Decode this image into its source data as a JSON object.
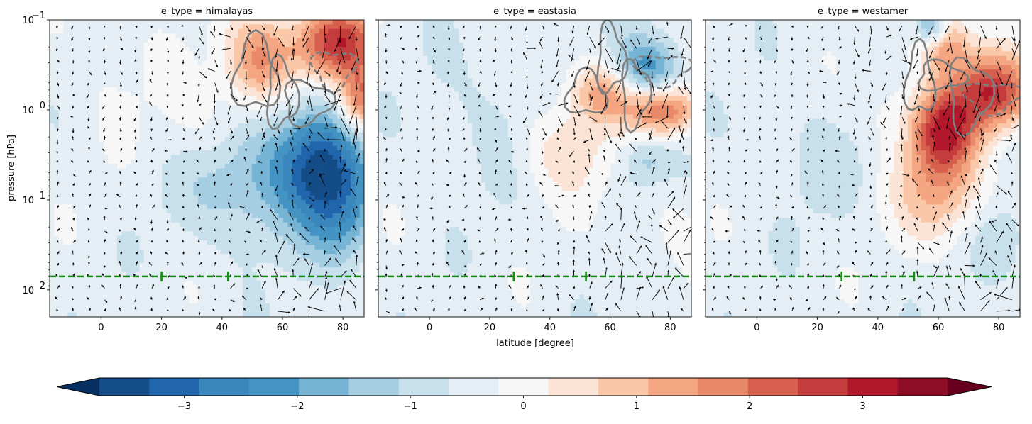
{
  "chart_data": {
    "type": "heatmap",
    "subtype": "filled-contour with quiver arrows and line contours, 3 facets",
    "panels": [
      {
        "title": "e_type = himalayas",
        "anomaly_blobs": [
          {
            "lat": 52,
            "logp": -0.55,
            "slat": 8,
            "slogp": 0.35,
            "amp": 2.4
          },
          {
            "lat": 78,
            "logp": -0.75,
            "slat": 10,
            "slogp": 0.3,
            "amp": 3.6
          },
          {
            "lat": 86,
            "logp": -0.1,
            "slat": 5,
            "slogp": 0.25,
            "amp": 2.6
          },
          {
            "lat": 72,
            "logp": 0.6,
            "slat": 10,
            "slogp": 0.45,
            "amp": -3.2
          },
          {
            "lat": 48,
            "logp": 0.8,
            "slat": 14,
            "slogp": 0.5,
            "amp": -1.2
          },
          {
            "lat": 80,
            "logp": 1.2,
            "slat": 8,
            "slogp": 0.4,
            "amp": -1.4
          },
          {
            "lat": 35,
            "logp": 0.2,
            "slat": 10,
            "slogp": 0.3,
            "amp": 0.6
          },
          {
            "lat": 5,
            "logp": -0.5,
            "slat": 12,
            "slogp": 0.5,
            "amp": 0.3
          }
        ],
        "grey_contour_range": [
          [
            40,
            82
          ],
          [
            -1,
            0.45
          ]
        ],
        "tropopause_marks": [
          20,
          42
        ]
      },
      {
        "title": "e_type = eastasia",
        "anomaly_blobs": [
          {
            "lat": 72,
            "logp": -0.45,
            "slat": 8,
            "slogp": 0.25,
            "amp": -2.2
          },
          {
            "lat": 58,
            "logp": -0.2,
            "slat": 8,
            "slogp": 0.25,
            "amp": 2.1
          },
          {
            "lat": 78,
            "logp": 0.0,
            "slat": 8,
            "slogp": 0.2,
            "amp": 2.8
          },
          {
            "lat": 45,
            "logp": 0.45,
            "slat": 10,
            "slogp": 0.35,
            "amp": 1.2
          },
          {
            "lat": 72,
            "logp": 0.55,
            "slat": 6,
            "slogp": 0.2,
            "amp": -1.0
          },
          {
            "lat": 20,
            "logp": 0.1,
            "slat": 14,
            "slogp": 0.6,
            "amp": -0.4
          },
          {
            "lat": 80,
            "logp": 1.3,
            "slat": 6,
            "slogp": 0.3,
            "amp": 0.4
          }
        ],
        "grey_contour_range": [
          [
            38,
            85
          ],
          [
            -1,
            0.3
          ]
        ],
        "tropopause_marks": [
          28,
          52
        ]
      },
      {
        "title": "e_type = westamer",
        "anomaly_blobs": [
          {
            "lat": 62,
            "logp": -0.75,
            "slat": 6,
            "slogp": 0.25,
            "amp": 2.4
          },
          {
            "lat": 78,
            "logp": -0.2,
            "slat": 9,
            "slogp": 0.3,
            "amp": 3.6
          },
          {
            "lat": 62,
            "logp": 0.2,
            "slat": 7,
            "slogp": 0.3,
            "amp": 3.0
          },
          {
            "lat": 60,
            "logp": 0.8,
            "slat": 10,
            "slogp": 0.45,
            "amp": 2.0
          },
          {
            "lat": 58,
            "logp": -0.9,
            "slat": 4,
            "slogp": 0.15,
            "amp": -2.2
          },
          {
            "lat": 20,
            "logp": 0.5,
            "slat": 14,
            "slogp": 0.5,
            "amp": -0.4
          },
          {
            "lat": 80,
            "logp": 1.5,
            "slat": 6,
            "slogp": 0.3,
            "amp": -0.8
          },
          {
            "lat": 45,
            "logp": 0.0,
            "slat": 10,
            "slogp": 0.3,
            "amp": 0.5
          }
        ],
        "grey_contour_range": [
          [
            45,
            84
          ],
          [
            -1,
            0.45
          ]
        ],
        "tropopause_marks": [
          28,
          52
        ]
      }
    ],
    "xlabel": "latitude [degree]",
    "ylabel": "pressure [hPa]",
    "xlim": [
      -17,
      87
    ],
    "ylim_logp": [
      -1,
      2.3
    ],
    "yscale": "log",
    "yinverted": true,
    "tropopause_level_logp": 1.85,
    "x_ticks": [
      {
        "value": 0,
        "label": "0"
      },
      {
        "value": 20,
        "label": "20"
      },
      {
        "value": 40,
        "label": "40"
      },
      {
        "value": 60,
        "label": "60"
      },
      {
        "value": 80,
        "label": "80"
      }
    ],
    "y_ticks": [
      {
        "value": -1,
        "label": "10",
        "exp": "−1"
      },
      {
        "value": 0,
        "label": "10",
        "exp": "0"
      },
      {
        "value": 1,
        "label": "10",
        "exp": "1"
      },
      {
        "value": 2,
        "label": "10",
        "exp": "2"
      }
    ],
    "colorbar": {
      "colormap": "RdBu_r",
      "levels": [
        -3.75,
        -3.25,
        -2.75,
        -2.25,
        -1.75,
        -1.25,
        -0.75,
        -0.25,
        0.25,
        0.75,
        1.25,
        1.75,
        2.25,
        2.75,
        3.25,
        3.75
      ],
      "extend": "both",
      "ticks": [
        {
          "value": -3,
          "label": "−3"
        },
        {
          "value": -2,
          "label": "−2"
        },
        {
          "value": -1,
          "label": "−1"
        },
        {
          "value": 0,
          "label": "0"
        },
        {
          "value": 1,
          "label": "1"
        },
        {
          "value": 2,
          "label": "2"
        },
        {
          "value": 3,
          "label": "3"
        }
      ],
      "colors": [
        "#053061",
        "#134c87",
        "#2166ac",
        "#3a87bd",
        "#4393c3",
        "#76b4d5",
        "#a6cee3",
        "#c8e0ec",
        "#e4eef4",
        "#f7f7f7",
        "#fbe4d6",
        "#fac8a9",
        "#f4a582",
        "#e8896a",
        "#d6604d",
        "#c43c3c",
        "#b2182b",
        "#8c0d25",
        "#67001f"
      ]
    },
    "line_colors": {
      "grey_contour": "#808080",
      "tropopause_line": "#1a8a1a",
      "arrows": "#000000"
    }
  }
}
